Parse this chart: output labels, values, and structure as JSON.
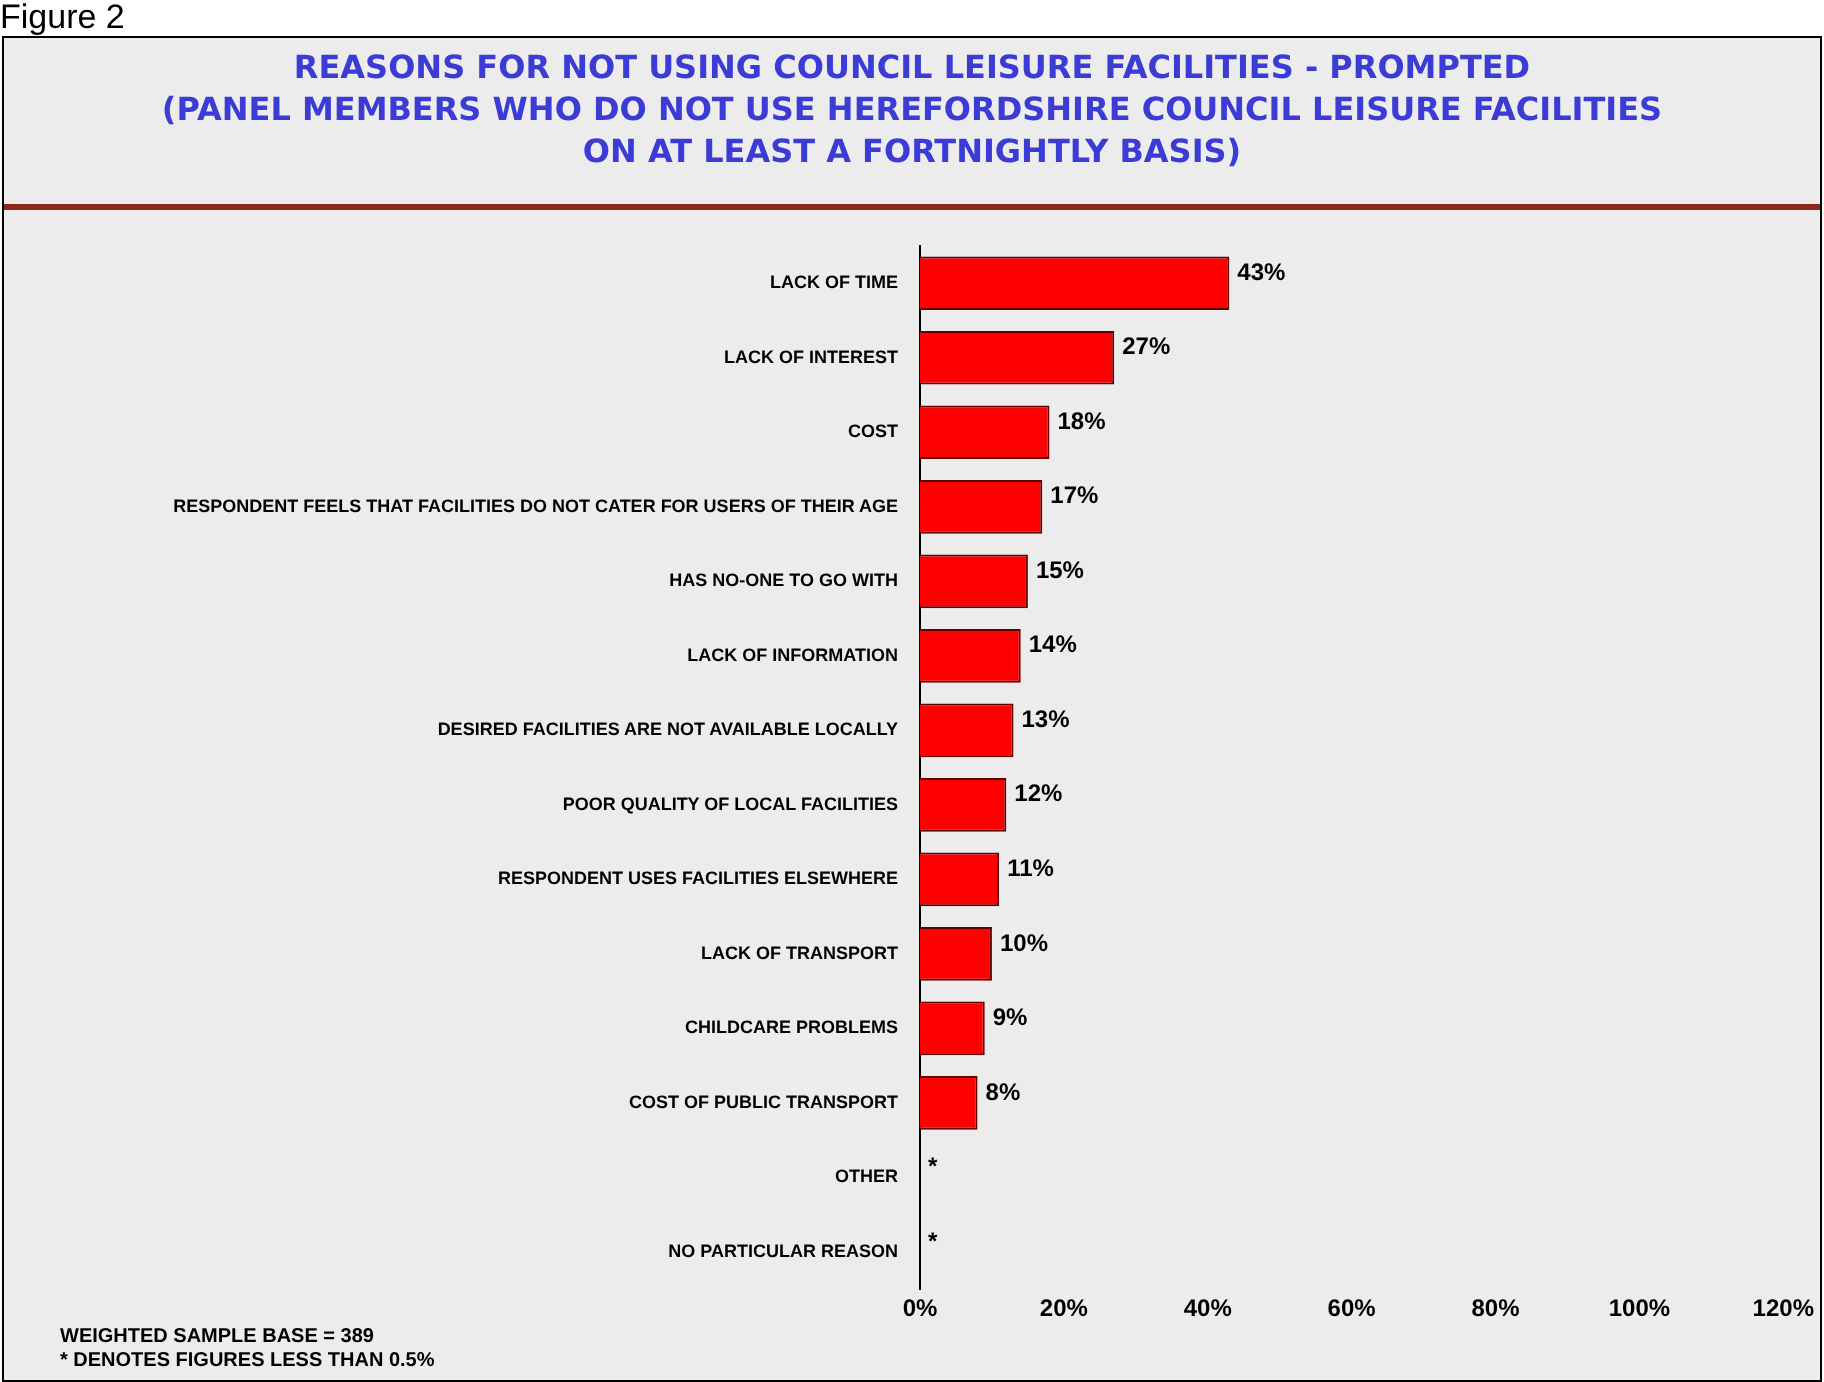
{
  "chart_data": {
    "type": "bar",
    "orientation": "horizontal",
    "title": "REASONS FOR NOT USING COUNCIL LEISURE FACILITIES - PROMPTED\n(PANEL MEMBERS WHO DO NOT USE HEREFORDSHIRE COUNCIL LEISURE FACILITIES\nON AT LEAST A FORTNIGHTLY BASIS)",
    "categories": [
      "LACK OF TIME",
      "LACK OF INTEREST",
      "COST",
      "RESPONDENT FEELS THAT FACILITIES DO NOT CATER FOR USERS OF THEIR AGE",
      "HAS NO-ONE TO GO WITH",
      "LACK OF INFORMATION",
      "DESIRED FACILITIES ARE NOT AVAILABLE LOCALLY",
      "POOR QUALITY OF LOCAL FACILITIES",
      "RESPONDENT USES FACILITIES ELSEWHERE",
      "LACK OF TRANSPORT",
      "CHILDCARE PROBLEMS",
      "COST OF PUBLIC TRANSPORT",
      "OTHER",
      "NO PARTICULAR REASON"
    ],
    "values": [
      43,
      27,
      18,
      17,
      15,
      14,
      13,
      12,
      11,
      10,
      9,
      8,
      0,
      0
    ],
    "value_labels": [
      "43%",
      "27%",
      "18%",
      "17%",
      "15%",
      "14%",
      "13%",
      "12%",
      "11%",
      "10%",
      "9%",
      "8%",
      "*",
      "*"
    ],
    "color": "#ff0000",
    "xlim": [
      0,
      120
    ],
    "xticks": [
      {
        "value": 0,
        "label": "0%"
      },
      {
        "value": 20,
        "label": "20%"
      },
      {
        "value": 40,
        "label": "40%"
      },
      {
        "value": 60,
        "label": "60%"
      },
      {
        "value": 80,
        "label": "80%"
      },
      {
        "value": 100,
        "label": "100%"
      },
      {
        "value": 120,
        "label": "120%"
      }
    ],
    "grid": false,
    "legend": false,
    "annotations": [
      "Figure 2",
      "WEIGHTED SAMPLE BASE = 389",
      "* DENOTES FIGURES LESS THAN 0.5%"
    ]
  }
}
